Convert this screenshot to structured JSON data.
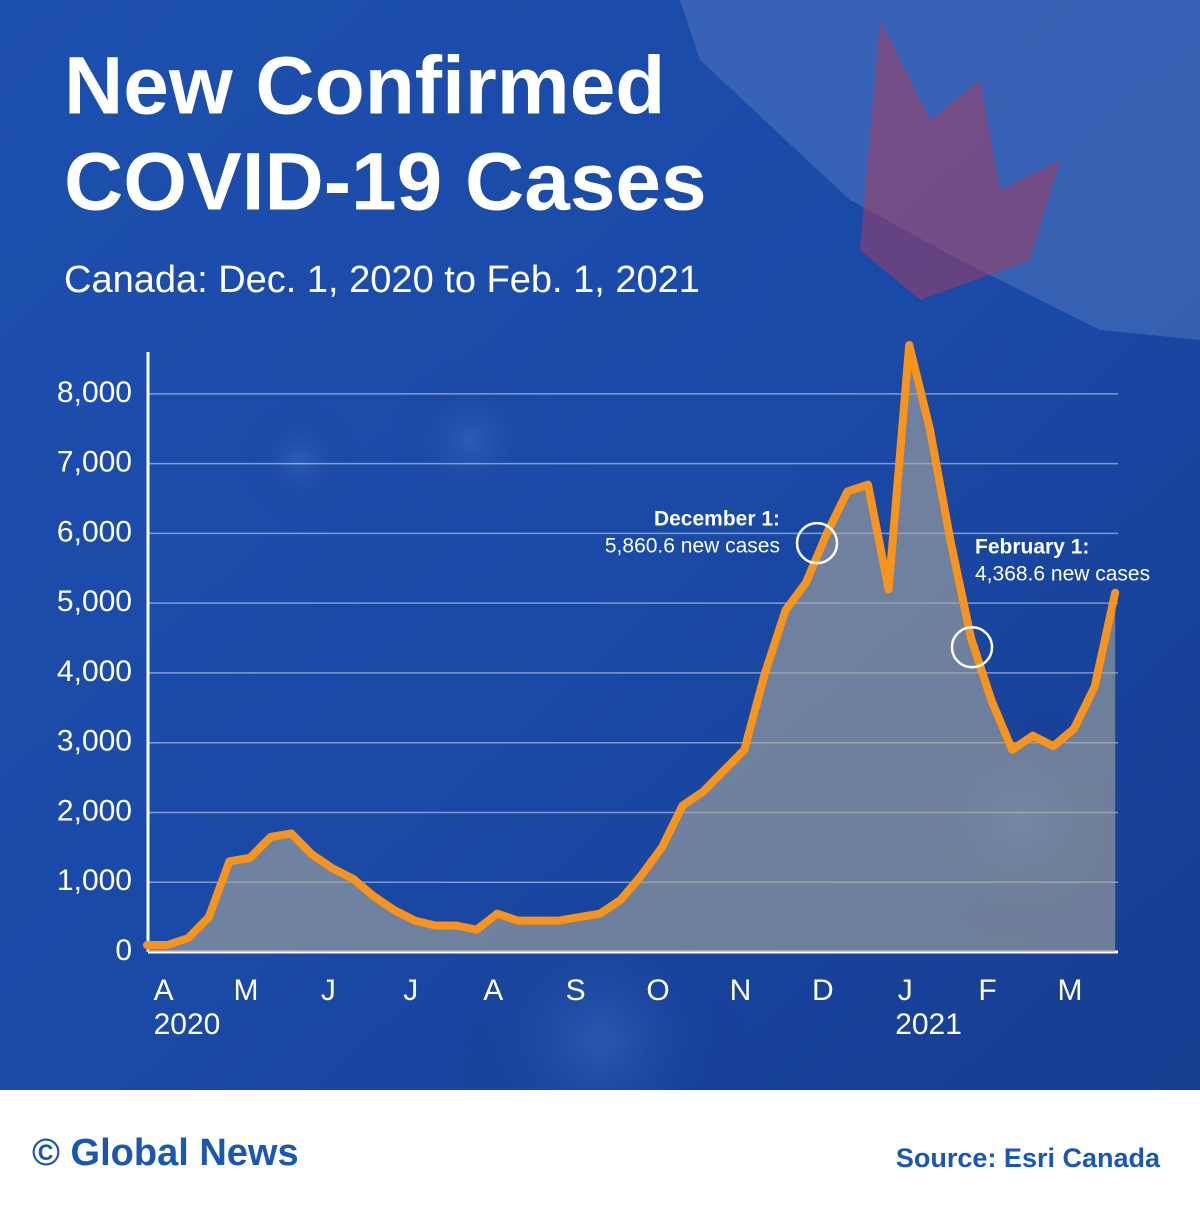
{
  "chart_data": {
    "type": "line",
    "title": [
      "New Confirmed",
      "COVID-19 Cases"
    ],
    "subtitle": "Canada: Dec. 1, 2020 to Feb. 1, 2021",
    "categories": [
      null,
      "A",
      null,
      null,
      null,
      "M",
      null,
      null,
      null,
      "J",
      null,
      null,
      null,
      "J",
      null,
      null,
      null,
      "A",
      null,
      null,
      null,
      "S",
      null,
      null,
      null,
      "O",
      null,
      null,
      null,
      "N",
      null,
      null,
      null,
      "D",
      null,
      null,
      null,
      "J",
      null,
      null,
      null,
      "F",
      null,
      null,
      null,
      "M",
      null,
      null
    ],
    "years": [
      "2020",
      "2021"
    ],
    "series": [
      {
        "name": "New confirmed cases",
        "color": "#f7941d",
        "values": [
          100,
          100,
          200,
          500,
          1300,
          1350,
          1650,
          1700,
          1400,
          1200,
          1050,
          800,
          600,
          450,
          380,
          380,
          320,
          550,
          450,
          450,
          450,
          500,
          550,
          750,
          1100,
          1500,
          2100,
          2300,
          2600,
          2900,
          4000,
          4900,
          5300,
          6000,
          6600,
          6700,
          5200,
          8700,
          7500,
          5900,
          4500,
          3600,
          2900,
          3100,
          2950,
          3200,
          3800,
          5150
        ]
      }
    ],
    "annotations": [
      {
        "label": "December 1:",
        "text": "5,860.6 new cases",
        "value": 5860.6
      },
      {
        "label": "February 1:",
        "text": "4,368.6 new cases",
        "value": 4368.6
      }
    ],
    "ylim": [
      0,
      8600
    ],
    "yticks": [
      0,
      {
        "value": 1000,
        "label": "1,000"
      },
      {
        "value": 2000,
        "label": "2,000"
      },
      {
        "value": 3000,
        "label": "3,000"
      },
      {
        "value": 4000,
        "label": "4,000"
      },
      {
        "value": 5000,
        "label": "5,000"
      },
      {
        "value": 6000,
        "label": "6,000"
      },
      {
        "value": 7000,
        "label": "7,000"
      },
      {
        "value": 8000,
        "label": "8,000"
      }
    ],
    "grid": true
  },
  "footer": {
    "brand": "© Global News",
    "source": "Source: Esri Canada"
  }
}
